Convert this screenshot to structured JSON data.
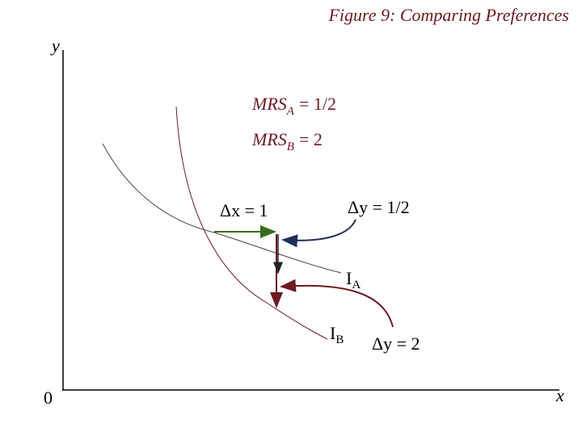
{
  "title": "Figure 9: Comparing Preferences",
  "axes": {
    "y_label": "y",
    "x_label": "x",
    "origin": "0"
  },
  "labels": {
    "mrs_a": {
      "base": "MRS",
      "sub": "A",
      "rest": "= 1/2"
    },
    "mrs_b": {
      "base": "MRS",
      "sub": "B",
      "rest": "= 2"
    },
    "delta_x": "Δx = 1",
    "delta_y_a": "Δy = 1/2",
    "curve_a": {
      "base": "I",
      "sub": "A"
    },
    "curve_b": {
      "base": "I",
      "sub": "B"
    },
    "delta_y_b": "Δy = 2"
  }
}
